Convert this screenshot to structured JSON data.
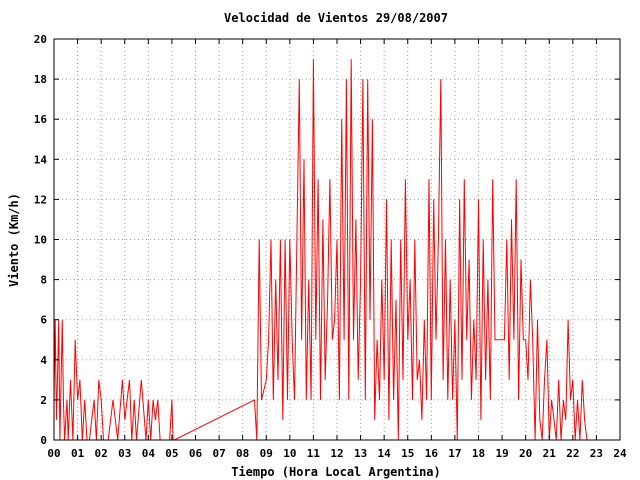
{
  "chart_data": {
    "type": "line",
    "title": "Velocidad de Vientos 29/08/2007",
    "xlabel": "Tiempo (Hora Local Argentina)",
    "ylabel": "Viento (Km/h)",
    "xlim": [
      0,
      24
    ],
    "ylim": [
      0,
      20
    ],
    "x_ticks": [
      "00",
      "01",
      "02",
      "03",
      "04",
      "05",
      "06",
      "07",
      "08",
      "09",
      "10",
      "11",
      "12",
      "13",
      "14",
      "15",
      "16",
      "17",
      "18",
      "19",
      "20",
      "21",
      "22",
      "23",
      "24"
    ],
    "y_ticks": [
      "0",
      "2",
      "4",
      "6",
      "8",
      "10",
      "12",
      "14",
      "16",
      "18",
      "20"
    ],
    "grid": true,
    "series": [
      {
        "color": "#ff0000",
        "x": [
          0.0,
          0.05,
          0.1,
          0.15,
          0.2,
          0.25,
          0.3,
          0.35,
          0.4,
          0.45,
          0.5,
          0.55,
          0.6,
          0.7,
          0.8,
          0.9,
          1.0,
          1.1,
          1.2,
          1.3,
          1.4,
          1.5,
          1.6,
          1.7,
          1.8,
          1.9,
          2.0,
          2.1,
          2.2,
          2.3,
          2.5,
          2.7,
          2.9,
          3.0,
          3.1,
          3.2,
          3.3,
          3.4,
          3.5,
          3.7,
          3.9,
          4.0,
          4.1,
          4.2,
          4.3,
          4.4,
          4.5,
          4.9,
          5.0,
          5.05,
          5.1,
          8.5,
          8.6,
          8.7,
          8.8,
          9.0,
          9.1,
          9.2,
          9.3,
          9.4,
          9.5,
          9.6,
          9.7,
          9.8,
          9.9,
          10.0,
          10.1,
          10.2,
          10.3,
          10.4,
          10.5,
          10.6,
          10.7,
          10.8,
          10.9,
          11.0,
          11.1,
          11.2,
          11.3,
          11.4,
          11.5,
          11.6,
          11.7,
          11.8,
          11.9,
          12.0,
          12.1,
          12.2,
          12.3,
          12.4,
          12.5,
          12.6,
          12.7,
          12.8,
          12.9,
          13.0,
          13.1,
          13.2,
          13.3,
          13.4,
          13.5,
          13.6,
          13.7,
          13.8,
          13.9,
          14.0,
          14.1,
          14.2,
          14.3,
          14.4,
          14.5,
          14.6,
          14.7,
          14.8,
          14.9,
          15.0,
          15.1,
          15.2,
          15.3,
          15.4,
          15.5,
          15.6,
          15.7,
          15.8,
          15.9,
          16.0,
          16.1,
          16.2,
          16.3,
          16.4,
          16.5,
          16.6,
          16.7,
          16.8,
          16.9,
          17.0,
          17.1,
          17.2,
          17.3,
          17.4,
          17.5,
          17.6,
          17.7,
          17.8,
          17.9,
          18.0,
          18.1,
          18.2,
          18.3,
          18.4,
          18.5,
          18.6,
          18.7,
          18.8,
          18.9,
          19.0,
          19.1,
          19.2,
          19.3,
          19.4,
          19.5,
          19.6,
          19.7,
          19.8,
          19.9,
          20.0,
          20.1,
          20.2,
          20.3,
          20.4,
          20.5,
          20.6,
          20.7,
          20.8,
          20.9,
          21.0,
          21.1,
          21.2,
          21.3,
          21.4,
          21.5,
          21.6,
          21.7,
          21.8,
          21.9,
          22.0,
          22.1,
          22.2,
          22.3,
          22.4,
          22.5,
          22.6
        ],
        "values": [
          2,
          6,
          1,
          3,
          6,
          0,
          3,
          6,
          2,
          0,
          1,
          2,
          0,
          3,
          0,
          5,
          2,
          3,
          0,
          2,
          0,
          0,
          1,
          2,
          0,
          3,
          2,
          0,
          0,
          0,
          2,
          0,
          3,
          1,
          2,
          3,
          0,
          2,
          0,
          3,
          0,
          2,
          0,
          2,
          1,
          2,
          0,
          0,
          2,
          0,
          0,
          2,
          0,
          10,
          2,
          3,
          5,
          10,
          2,
          8,
          3,
          10,
          1,
          10,
          2,
          10,
          5,
          2,
          10,
          18,
          5,
          14,
          2,
          8,
          2,
          19,
          5,
          13,
          2,
          11,
          3,
          7,
          13,
          5,
          6,
          10,
          2,
          16,
          5,
          18,
          2,
          19,
          5,
          11,
          3,
          8,
          18,
          2,
          18,
          6,
          16,
          1,
          5,
          2,
          8,
          3,
          12,
          1,
          10,
          2,
          7,
          0,
          10,
          3,
          13,
          5,
          8,
          2,
          10,
          3,
          4,
          1,
          6,
          2,
          13,
          2,
          12,
          5,
          10,
          18,
          3,
          10,
          2,
          8,
          2,
          6,
          0,
          12,
          3,
          13,
          5,
          9,
          2,
          6,
          3,
          12,
          1,
          10,
          3,
          8,
          2,
          13,
          5,
          5,
          5,
          5,
          5,
          10,
          3,
          11,
          5,
          13,
          2,
          9,
          5,
          5,
          3,
          8,
          5,
          0,
          6,
          1,
          0,
          3,
          5,
          0,
          2,
          1,
          0,
          3,
          0,
          2,
          1,
          6,
          2,
          3,
          0,
          2,
          0,
          3,
          1,
          0
        ]
      }
    ]
  }
}
